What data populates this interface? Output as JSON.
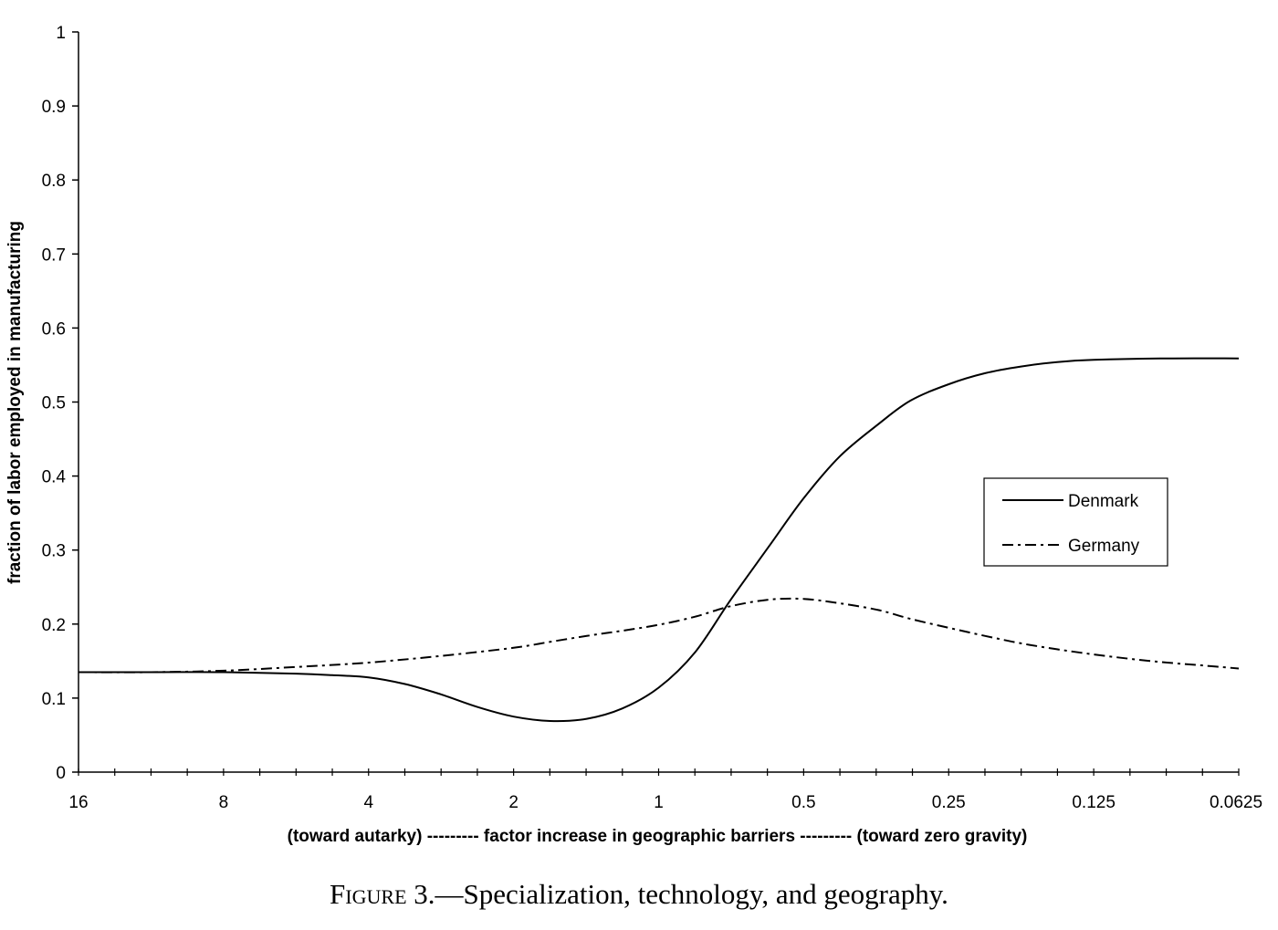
{
  "chart_data": {
    "type": "line",
    "xscale": "log2-reversed",
    "x_ticks": [
      "16",
      "8",
      "4",
      "2",
      "1",
      "0.5",
      "0.25",
      "0.125",
      "0.0625"
    ],
    "y_ticks": [
      "0",
      "0.1",
      "0.2",
      "0.3",
      "0.4",
      "0.5",
      "0.6",
      "0.7",
      "0.8",
      "0.9",
      "1"
    ],
    "xlim": [
      16,
      0.0625
    ],
    "ylim": [
      0,
      1
    ],
    "xlabel": "(toward autarky) --------- factor increase in geographic barriers --------- (toward zero gravity)",
    "ylabel": "fraction of labor employed in manufacturing",
    "legend_position": "right",
    "grid": false,
    "series": [
      {
        "name": "Denmark",
        "style": "solid",
        "points": [
          [
            16,
            0.135
          ],
          [
            11.3,
            0.135
          ],
          [
            8,
            0.135
          ],
          [
            5.66,
            0.133
          ],
          [
            4.76,
            0.131
          ],
          [
            4,
            0.128
          ],
          [
            3.36,
            0.119
          ],
          [
            2.83,
            0.105
          ],
          [
            2.38,
            0.088
          ],
          [
            2,
            0.075
          ],
          [
            1.68,
            0.069
          ],
          [
            1.41,
            0.072
          ],
          [
            1.19,
            0.086
          ],
          [
            1,
            0.114
          ],
          [
            0.84,
            0.162
          ],
          [
            0.71,
            0.232
          ],
          [
            0.59,
            0.305
          ],
          [
            0.5,
            0.37
          ],
          [
            0.42,
            0.427
          ],
          [
            0.35,
            0.47
          ],
          [
            0.3,
            0.502
          ],
          [
            0.25,
            0.524
          ],
          [
            0.21,
            0.539
          ],
          [
            0.177,
            0.548
          ],
          [
            0.149,
            0.554
          ],
          [
            0.125,
            0.557
          ],
          [
            0.088,
            0.559
          ],
          [
            0.0625,
            0.559
          ]
        ]
      },
      {
        "name": "Germany",
        "style": "dash-dot",
        "points": [
          [
            16,
            0.135
          ],
          [
            11.3,
            0.135
          ],
          [
            8,
            0.137
          ],
          [
            5.66,
            0.142
          ],
          [
            4,
            0.148
          ],
          [
            2.83,
            0.157
          ],
          [
            2,
            0.168
          ],
          [
            1.68,
            0.176
          ],
          [
            1.41,
            0.184
          ],
          [
            1.19,
            0.191
          ],
          [
            1,
            0.199
          ],
          [
            0.84,
            0.21
          ],
          [
            0.71,
            0.224
          ],
          [
            0.59,
            0.233
          ],
          [
            0.5,
            0.234
          ],
          [
            0.42,
            0.228
          ],
          [
            0.35,
            0.219
          ],
          [
            0.3,
            0.207
          ],
          [
            0.25,
            0.195
          ],
          [
            0.21,
            0.184
          ],
          [
            0.177,
            0.174
          ],
          [
            0.149,
            0.166
          ],
          [
            0.125,
            0.159
          ],
          [
            0.105,
            0.153
          ],
          [
            0.088,
            0.148
          ],
          [
            0.074,
            0.144
          ],
          [
            0.0625,
            0.14
          ]
        ]
      }
    ]
  },
  "caption": {
    "figure_word": "Figure",
    "text": " 3.—Specialization, technology, and geography."
  }
}
